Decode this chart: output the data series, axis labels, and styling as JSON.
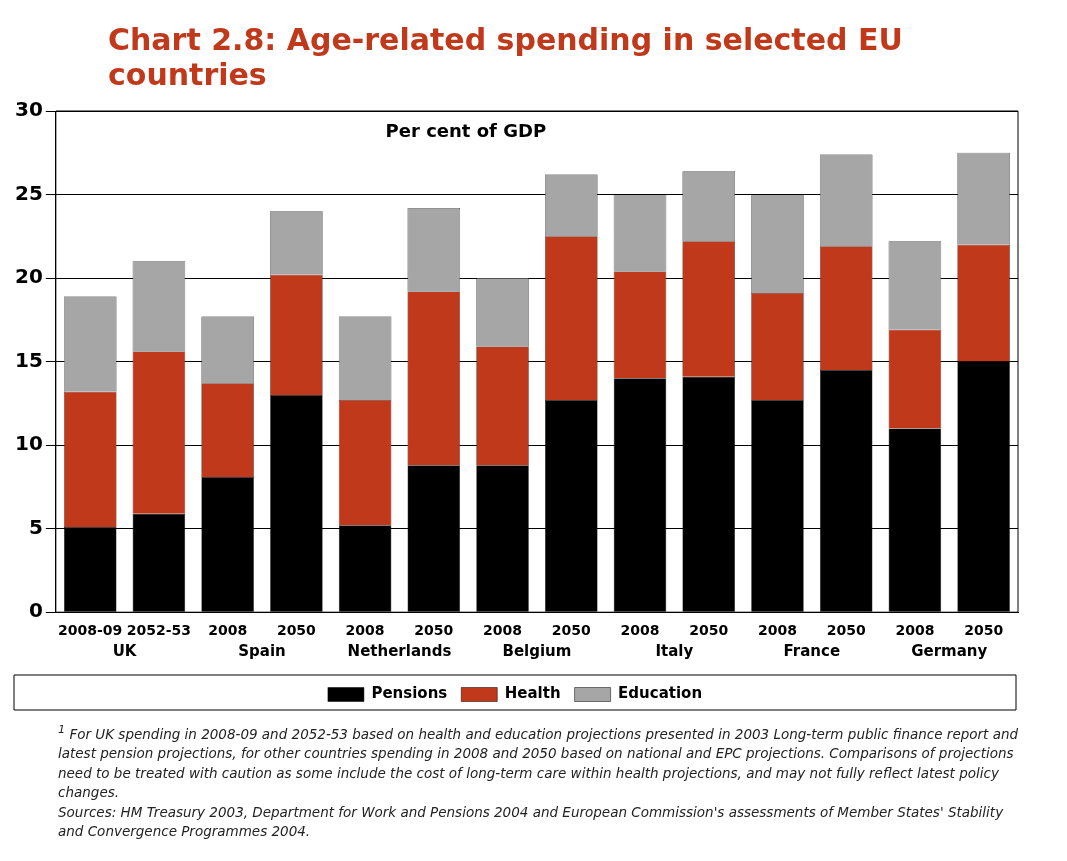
{
  "chart_data": {
    "type": "bar",
    "title": "Chart 2.8: Age-related spending in selected EU countries",
    "subtitle": "Per cent of GDP",
    "categories": [
      "2008-09",
      "2052-53",
      "2008",
      "2050",
      "2008",
      "2050",
      "2008",
      "2050",
      "2008",
      "2050",
      "2008",
      "2050",
      "2008",
      "2050"
    ],
    "stacked": true,
    "series": [
      {
        "name": "Pensions",
        "color": "#000000",
        "values": [
          5.1,
          5.9,
          8.1,
          13.0,
          5.2,
          8.8,
          8.8,
          12.7,
          14.0,
          14.1,
          12.7,
          14.5,
          11.0,
          15.0
        ]
      },
      {
        "name": "Health",
        "color": "#c0391b",
        "values": [
          8.1,
          9.7,
          5.6,
          7.2,
          7.5,
          10.4,
          7.1,
          9.8,
          6.4,
          8.1,
          6.4,
          7.4,
          5.9,
          7.0
        ]
      },
      {
        "name": "Education",
        "color": "#a6a6a6",
        "values": [
          5.7,
          5.4,
          4.0,
          3.8,
          5.0,
          5.0,
          4.1,
          3.7,
          4.6,
          4.2,
          5.9,
          5.5,
          5.3,
          5.5
        ]
      }
    ],
    "ylim": [
      0,
      30
    ],
    "yticks": [
      0,
      5,
      10,
      15,
      20,
      25,
      30
    ],
    "grid": "y",
    "legend": "bottom",
    "annotations": [
      "UK",
      "Spain",
      "Netherlands",
      "Belgium",
      "Italy",
      "France",
      "Germany",
      "$^{1}$ For UK spending in 2008-09 and 2052-53 based on health and education projections presented in 2003 Long-term public finance report and latest pension projections, for other countries spending in 2008 and 2050 based on national and EPC projections. Comparisons of projections need to be treated with caution as some include the cost of long-term care within health projections, and may not fully reflect latest policy changes.",
      "Sources: HM Treasury 2003, Department for Work and Pensions 2004 and European Commission's assessments of Member States' Stability and Convergence Programmes 2004."
    ]
  }
}
